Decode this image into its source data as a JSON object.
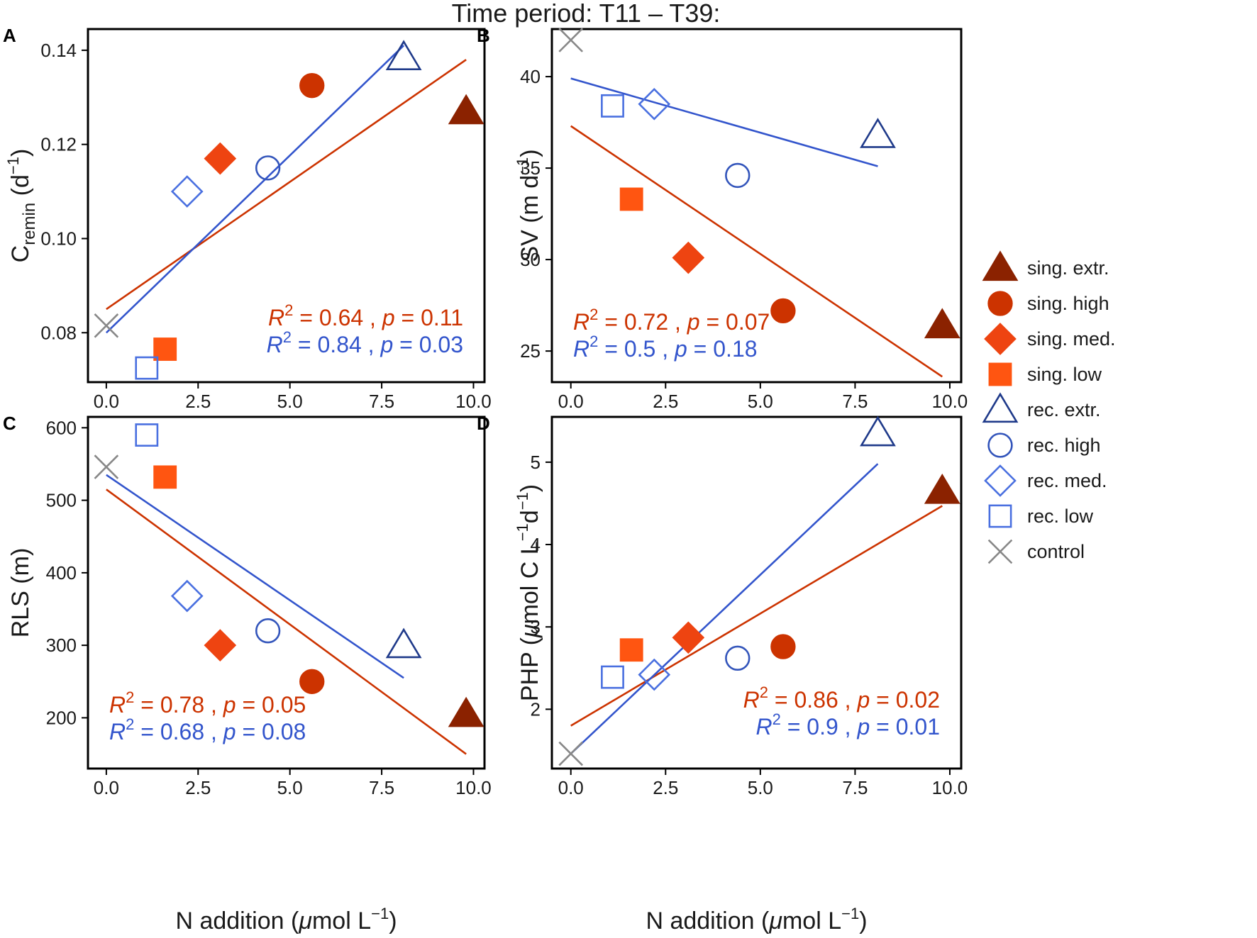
{
  "figure_title": "Time period: T11 – T39:",
  "colors": {
    "sing_extr": "#8b2200",
    "sing_high": "#cc3300",
    "sing_med": "#ee4411",
    "sing_low": "#ff5511",
    "rec_extr": "#1f3a8a",
    "rec_high": "#3355bb",
    "rec_med": "#4a70e0",
    "rec_low": "#4a70e0",
    "control": "#888888",
    "fit_sing": "#cc3300",
    "fit_rec": "#3355cc"
  },
  "legend": [
    {
      "key": "sing_extr",
      "label": "sing. extr.",
      "marker": "triangle-filled"
    },
    {
      "key": "sing_high",
      "label": "sing. high",
      "marker": "circle-filled"
    },
    {
      "key": "sing_med",
      "label": "sing. med.",
      "marker": "diamond-filled"
    },
    {
      "key": "sing_low",
      "label": "sing. low",
      "marker": "square-filled"
    },
    {
      "key": "rec_extr",
      "label": "rec. extr.",
      "marker": "triangle-open"
    },
    {
      "key": "rec_high",
      "label": "rec. high",
      "marker": "circle-open"
    },
    {
      "key": "rec_med",
      "label": "rec. med.",
      "marker": "diamond-open"
    },
    {
      "key": "rec_low",
      "label": "rec. low",
      "marker": "square-open"
    },
    {
      "key": "control",
      "label": "control",
      "marker": "x"
    }
  ],
  "x_axis": {
    "label_prefix": "N addition (",
    "label_mu": "μ",
    "label_unit": "mol L",
    "label_sup": "−1",
    "label_suffix": ")"
  },
  "chart_data": [
    {
      "type": "scatter",
      "tag": "A",
      "ylabel_main": "C",
      "ylabel_sub": "remin",
      "ylabel_unit": " (d",
      "ylabel_sup": "−1",
      "ylabel_close": ")",
      "xlim": [
        -0.5,
        10.3
      ],
      "ylim": [
        0.0695,
        0.1445
      ],
      "xticks": [
        0.0,
        2.5,
        5.0,
        7.5,
        10.0
      ],
      "xtick_labels": [
        "0.0",
        "2.5",
        "5.0",
        "7.5",
        "10.0"
      ],
      "yticks": [
        0.08,
        0.1,
        0.12,
        0.14
      ],
      "ytick_labels": [
        "0.08",
        "0.10",
        "0.12",
        "0.14"
      ],
      "points": [
        {
          "key": "sing_extr",
          "x": 9.8,
          "y": 0.127
        },
        {
          "key": "sing_high",
          "x": 5.6,
          "y": 0.1325
        },
        {
          "key": "sing_med",
          "x": 3.1,
          "y": 0.117
        },
        {
          "key": "sing_low",
          "x": 1.6,
          "y": 0.0765
        },
        {
          "key": "rec_extr",
          "x": 8.1,
          "y": 0.1385
        },
        {
          "key": "rec_high",
          "x": 4.4,
          "y": 0.115
        },
        {
          "key": "rec_med",
          "x": 2.2,
          "y": 0.11
        },
        {
          "key": "rec_low",
          "x": 1.1,
          "y": 0.0725
        },
        {
          "key": "control",
          "x": 0.0,
          "y": 0.0815
        }
      ],
      "fits": [
        {
          "group": "sing",
          "x": [
            0.0,
            9.8
          ],
          "y": [
            0.085,
            0.138
          ]
        },
        {
          "group": "rec",
          "x": [
            0.0,
            8.1
          ],
          "y": [
            0.08,
            0.141
          ]
        }
      ],
      "stats": {
        "align": "right",
        "sing": {
          "r2": "0.64",
          "p": "0.11"
        },
        "rec": {
          "r2": "0.84",
          "p": "0.03"
        }
      }
    },
    {
      "type": "scatter",
      "tag": "B",
      "ylabel_main": "SV",
      "ylabel_sub": "",
      "ylabel_unit": " (m d",
      "ylabel_sup": "−1",
      "ylabel_close": ")",
      "xlim": [
        -0.5,
        10.3
      ],
      "ylim": [
        23.3,
        42.6
      ],
      "xticks": [
        0.0,
        2.5,
        5.0,
        7.5,
        10.0
      ],
      "xtick_labels": [
        "0.0",
        "2.5",
        "5.0",
        "7.5",
        "10.0"
      ],
      "yticks": [
        25,
        30,
        35,
        40
      ],
      "ytick_labels": [
        "25",
        "30",
        "35",
        "40"
      ],
      "points": [
        {
          "key": "sing_extr",
          "x": 9.8,
          "y": 26.4
        },
        {
          "key": "sing_high",
          "x": 5.6,
          "y": 27.2
        },
        {
          "key": "sing_med",
          "x": 3.1,
          "y": 30.1
        },
        {
          "key": "sing_low",
          "x": 1.6,
          "y": 33.3
        },
        {
          "key": "rec_extr",
          "x": 8.1,
          "y": 36.8
        },
        {
          "key": "rec_high",
          "x": 4.4,
          "y": 34.6
        },
        {
          "key": "rec_med",
          "x": 2.2,
          "y": 38.5
        },
        {
          "key": "rec_low",
          "x": 1.1,
          "y": 38.4
        },
        {
          "key": "control",
          "x": 0.0,
          "y": 42.0
        }
      ],
      "fits": [
        {
          "group": "sing",
          "x": [
            0.0,
            9.8
          ],
          "y": [
            37.3,
            23.6
          ]
        },
        {
          "group": "rec",
          "x": [
            0.0,
            8.1
          ],
          "y": [
            39.9,
            35.1
          ]
        }
      ],
      "stats": {
        "align": "left",
        "sing": {
          "r2": "0.72",
          "p": "0.07"
        },
        "rec": {
          "r2": "0.5",
          "p": "0.18"
        }
      }
    },
    {
      "type": "scatter",
      "tag": "C",
      "ylabel_main": "RLS",
      "ylabel_sub": "",
      "ylabel_unit": " (m",
      "ylabel_sup": "",
      "ylabel_close": ")",
      "xlim": [
        -0.5,
        10.3
      ],
      "ylim": [
        130,
        615
      ],
      "xticks": [
        0.0,
        2.5,
        5.0,
        7.5,
        10.0
      ],
      "xtick_labels": [
        "0.0",
        "2.5",
        "5.0",
        "7.5",
        "10.0"
      ],
      "yticks": [
        200,
        300,
        400,
        500,
        600
      ],
      "ytick_labels": [
        "200",
        "300",
        "400",
        "500",
        "600"
      ],
      "points": [
        {
          "key": "sing_extr",
          "x": 9.8,
          "y": 205
        },
        {
          "key": "sing_high",
          "x": 5.6,
          "y": 250
        },
        {
          "key": "sing_med",
          "x": 3.1,
          "y": 300
        },
        {
          "key": "sing_low",
          "x": 1.6,
          "y": 532
        },
        {
          "key": "rec_extr",
          "x": 8.1,
          "y": 300
        },
        {
          "key": "rec_high",
          "x": 4.4,
          "y": 320
        },
        {
          "key": "rec_med",
          "x": 2.2,
          "y": 368
        },
        {
          "key": "rec_low",
          "x": 1.1,
          "y": 590
        },
        {
          "key": "control",
          "x": 0.0,
          "y": 546
        }
      ],
      "fits": [
        {
          "group": "sing",
          "x": [
            0.0,
            9.8
          ],
          "y": [
            515,
            150
          ]
        },
        {
          "group": "rec",
          "x": [
            0.0,
            8.1
          ],
          "y": [
            535,
            255
          ]
        }
      ],
      "stats": {
        "align": "left",
        "sing": {
          "r2": "0.78",
          "p": "0.05"
        },
        "rec": {
          "r2": "0.68",
          "p": "0.08"
        }
      }
    },
    {
      "type": "scatter",
      "tag": "D",
      "ylabel_main": "PHP",
      "ylabel_sub": "",
      "ylabel_unit": " (",
      "ylabel_mu": "μ",
      "ylabel_unit2": "mol C L",
      "ylabel_sup": "−1",
      "ylabel_unit3": "d",
      "ylabel_sup2": "−1",
      "ylabel_close": ")",
      "xlim": [
        -0.5,
        10.3
      ],
      "ylim": [
        1.28,
        5.55
      ],
      "xticks": [
        0.0,
        2.5,
        5.0,
        7.5,
        10.0
      ],
      "xtick_labels": [
        "0.0",
        "2.5",
        "5.0",
        "7.5",
        "10.0"
      ],
      "yticks": [
        2,
        3,
        4,
        5
      ],
      "ytick_labels": [
        "2",
        "3",
        "4",
        "5"
      ],
      "points": [
        {
          "key": "sing_extr",
          "x": 9.8,
          "y": 4.65
        },
        {
          "key": "sing_high",
          "x": 5.6,
          "y": 2.76
        },
        {
          "key": "sing_med",
          "x": 3.1,
          "y": 2.87
        },
        {
          "key": "sing_low",
          "x": 1.6,
          "y": 2.72
        },
        {
          "key": "rec_extr",
          "x": 8.1,
          "y": 5.35
        },
        {
          "key": "rec_high",
          "x": 4.4,
          "y": 2.62
        },
        {
          "key": "rec_med",
          "x": 2.2,
          "y": 2.42
        },
        {
          "key": "rec_low",
          "x": 1.1,
          "y": 2.39
        },
        {
          "key": "control",
          "x": 0.0,
          "y": 1.46
        }
      ],
      "fits": [
        {
          "group": "sing",
          "x": [
            0.0,
            9.8
          ],
          "y": [
            1.8,
            4.47
          ]
        },
        {
          "group": "rec",
          "x": [
            0.0,
            8.1
          ],
          "y": [
            1.46,
            4.98
          ]
        }
      ],
      "stats": {
        "align": "right",
        "sing": {
          "r2": "0.86",
          "p": "0.02"
        },
        "rec": {
          "r2": "0.9",
          "p": "0.01"
        }
      }
    }
  ],
  "stat_labels": {
    "r": "R",
    "two": "2",
    "eq": " = ",
    "comma": " , ",
    "p": "p"
  }
}
